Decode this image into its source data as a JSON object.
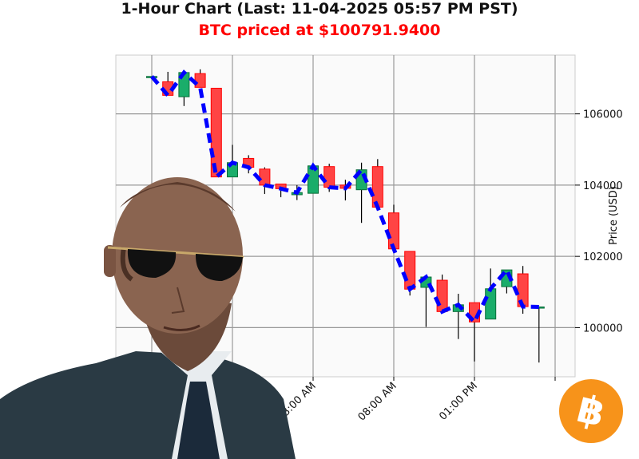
{
  "header": {
    "title": "1-Hour Chart (Last: 11-04-2025 05:57 PM PST)",
    "subtitle": "BTC priced at $100791.9400"
  },
  "chart_data": {
    "type": "candlestick",
    "title": "1-Hour Chart (Last: 11-04-2025 05:57 PM PST)",
    "subtitle": "BTC priced at $100791.9400",
    "xlabel": "",
    "ylabel": "Price (USD)",
    "ylim": [
      98620,
      107650
    ],
    "grid": true,
    "yticks": [
      100000,
      102000,
      104000,
      106000
    ],
    "xticks": [
      {
        "time": "2025-11-03 17:00",
        "label": ""
      },
      {
        "time": "2025-11-03 22:00",
        "label": ""
      },
      {
        "time": "2025-11-04 03:00",
        "label": "03:00 AM"
      },
      {
        "time": "2025-11-04 08:00",
        "label": "08:00 AM"
      },
      {
        "time": "2025-11-04 13:00",
        "label": "01:00 PM"
      },
      {
        "time": "2025-11-04 18:00",
        "label": ""
      }
    ],
    "colors": {
      "up": "#1aad6a",
      "down": "#ff4444",
      "line": "#0000ff",
      "up_edge": "#0b6e3a",
      "down_edge": "#ff0000"
    },
    "line_series": "close (dashed)",
    "candles": [
      {
        "time": "2025-11-03 17:00",
        "open": 107040,
        "high": 107050,
        "low": 107040,
        "close": 107050
      },
      {
        "time": "2025-11-03 18:00",
        "open": 106900,
        "high": 107180,
        "low": 106520,
        "close": 106520
      },
      {
        "time": "2025-11-03 19:00",
        "open": 106480,
        "high": 107160,
        "low": 106220,
        "close": 107160
      },
      {
        "time": "2025-11-03 20:00",
        "open": 107130,
        "high": 107250,
        "low": 106745,
        "close": 106745
      },
      {
        "time": "2025-11-03 21:00",
        "open": 106720,
        "high": 106720,
        "low": 104230,
        "close": 104230
      },
      {
        "time": "2025-11-03 22:00",
        "open": 104230,
        "high": 105130,
        "low": 104230,
        "close": 104630
      },
      {
        "time": "2025-11-03 23:00",
        "open": 104750,
        "high": 104840,
        "low": 104330,
        "close": 104500
      },
      {
        "time": "2025-11-04 00:00",
        "open": 104450,
        "high": 104500,
        "low": 103750,
        "close": 104000
      },
      {
        "time": "2025-11-04 01:00",
        "open": 104030,
        "high": 104030,
        "low": 103660,
        "close": 103900
      },
      {
        "time": "2025-11-04 02:00",
        "open": 103730,
        "high": 104000,
        "low": 103580,
        "close": 103790
      },
      {
        "time": "2025-11-04 03:00",
        "open": 103770,
        "high": 104540,
        "low": 103770,
        "close": 104540
      },
      {
        "time": "2025-11-04 04:00",
        "open": 104520,
        "high": 104600,
        "low": 103810,
        "close": 103940
      },
      {
        "time": "2025-11-04 05:00",
        "open": 104000,
        "high": 104150,
        "low": 103570,
        "close": 103910
      },
      {
        "time": "2025-11-04 06:00",
        "open": 103870,
        "high": 104630,
        "low": 102940,
        "close": 104430
      },
      {
        "time": "2025-11-04 07:00",
        "open": 104520,
        "high": 104730,
        "low": 103380,
        "close": 103380
      },
      {
        "time": "2025-11-04 08:00",
        "open": 103220,
        "high": 103450,
        "low": 102210,
        "close": 102210
      },
      {
        "time": "2025-11-04 09:00",
        "open": 102140,
        "high": 102140,
        "low": 100900,
        "close": 101080
      },
      {
        "time": "2025-11-04 10:00",
        "open": 101130,
        "high": 101420,
        "low": 100020,
        "close": 101420
      },
      {
        "time": "2025-11-04 11:00",
        "open": 101330,
        "high": 101490,
        "low": 100450,
        "close": 100450
      },
      {
        "time": "2025-11-04 12:00",
        "open": 100450,
        "high": 100950,
        "low": 99680,
        "close": 100640
      },
      {
        "time": "2025-11-04 13:00",
        "open": 100700,
        "high": 100700,
        "low": 99050,
        "close": 100160
      },
      {
        "time": "2025-11-04 14:00",
        "open": 100240,
        "high": 101660,
        "low": 100240,
        "close": 101090
      },
      {
        "time": "2025-11-04 15:00",
        "open": 101150,
        "high": 101620,
        "low": 100960,
        "close": 101620
      },
      {
        "time": "2025-11-04 16:00",
        "open": 101510,
        "high": 101730,
        "low": 100390,
        "close": 100590
      },
      {
        "time": "2025-11-04 17:00",
        "open": 100580,
        "high": 100580,
        "low": 99020,
        "close": 100580
      }
    ]
  },
  "overlays": {
    "person_image": "man in sunglasses and suit",
    "logo": "bitcoin-logo",
    "logo_color": "#f7931a"
  }
}
